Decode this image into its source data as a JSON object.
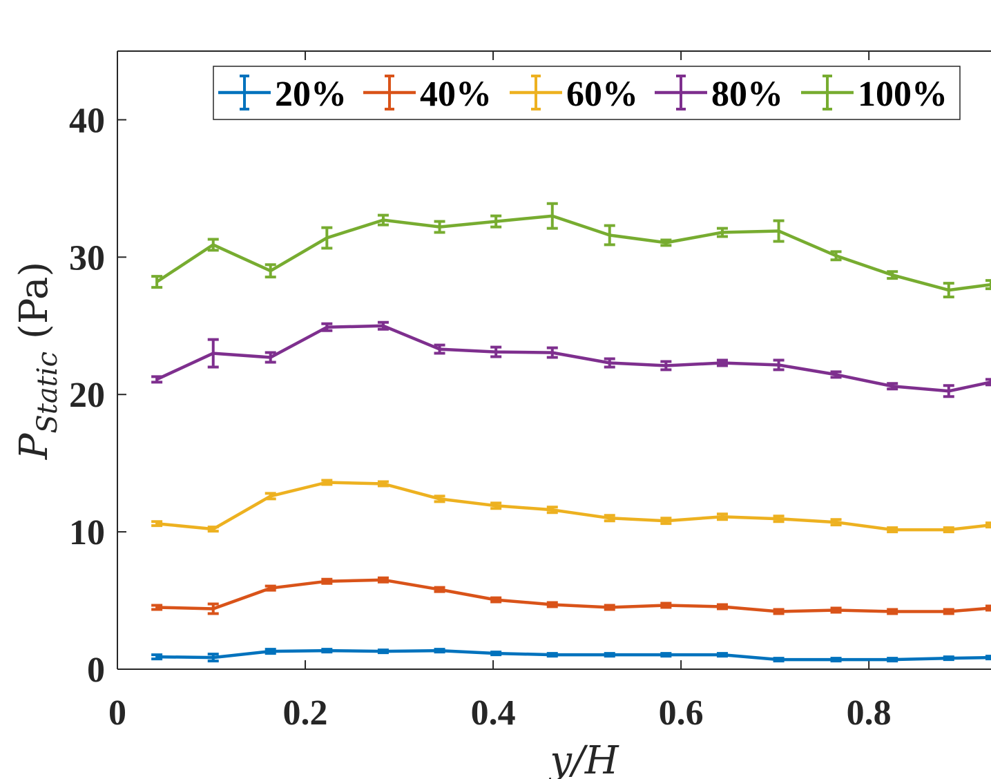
{
  "chart_data": {
    "type": "line",
    "xlabel": "y/H",
    "ylabel": {
      "main": "P",
      "subscript": "Static",
      "unit": "(Pa)"
    },
    "xlim": [
      0,
      0.93
    ],
    "ylim": [
      0,
      45
    ],
    "xticks": [
      0,
      0.2,
      0.4,
      0.6,
      0.8
    ],
    "xtick_labels": [
      "0",
      "0.2",
      "0.4",
      "0.6",
      "0.8"
    ],
    "yticks": [
      0,
      10,
      20,
      30,
      40
    ],
    "ytick_labels": [
      "0",
      "10",
      "20",
      "30",
      "40"
    ],
    "legend_position": "top",
    "x": [
      0.042,
      0.102,
      0.163,
      0.223,
      0.283,
      0.343,
      0.403,
      0.463,
      0.524,
      0.584,
      0.644,
      0.704,
      0.765,
      0.825,
      0.885,
      0.93
    ],
    "series": [
      {
        "name": "20%",
        "color": "#0072BD",
        "values": [
          0.9,
          0.85,
          1.3,
          1.35,
          1.3,
          1.35,
          1.15,
          1.05,
          1.05,
          1.05,
          1.05,
          0.7,
          0.7,
          0.7,
          0.8,
          0.85
        ],
        "errors": [
          0.15,
          0.25,
          0.15,
          0.1,
          0.1,
          0.1,
          0.1,
          0.1,
          0.1,
          0.1,
          0.1,
          0.1,
          0.1,
          0.1,
          0.1,
          0.1
        ]
      },
      {
        "name": "40%",
        "color": "#D95319",
        "values": [
          4.5,
          4.4,
          5.9,
          6.4,
          6.5,
          5.8,
          5.05,
          4.7,
          4.5,
          4.65,
          4.55,
          4.2,
          4.3,
          4.2,
          4.2,
          4.45
        ],
        "errors": [
          0.15,
          0.35,
          0.15,
          0.15,
          0.15,
          0.15,
          0.15,
          0.15,
          0.15,
          0.15,
          0.15,
          0.15,
          0.15,
          0.15,
          0.15,
          0.15
        ]
      },
      {
        "name": "60%",
        "color": "#EDB120",
        "values": [
          10.6,
          10.2,
          12.6,
          13.6,
          13.5,
          12.4,
          11.9,
          11.6,
          11.0,
          10.8,
          11.1,
          10.95,
          10.7,
          10.15,
          10.15,
          10.5
        ],
        "errors": [
          0.15,
          0.15,
          0.2,
          0.15,
          0.15,
          0.2,
          0.2,
          0.2,
          0.2,
          0.2,
          0.2,
          0.2,
          0.2,
          0.15,
          0.15,
          0.15
        ]
      },
      {
        "name": "80%",
        "color": "#7E2F8E",
        "values": [
          21.1,
          23.0,
          22.7,
          24.9,
          25.0,
          23.3,
          23.1,
          23.05,
          22.3,
          22.1,
          22.3,
          22.15,
          21.45,
          20.6,
          20.25,
          20.9
        ],
        "errors": [
          0.2,
          1.0,
          0.35,
          0.25,
          0.25,
          0.3,
          0.35,
          0.35,
          0.3,
          0.3,
          0.2,
          0.35,
          0.2,
          0.2,
          0.4,
          0.2
        ]
      },
      {
        "name": "100%",
        "color": "#77AC30",
        "values": [
          28.2,
          30.9,
          29.0,
          31.4,
          32.7,
          32.2,
          32.6,
          33.0,
          31.6,
          31.05,
          31.8,
          31.9,
          30.1,
          28.7,
          27.6,
          28.0
        ],
        "errors": [
          0.4,
          0.4,
          0.45,
          0.75,
          0.35,
          0.4,
          0.4,
          0.9,
          0.7,
          0.2,
          0.3,
          0.75,
          0.3,
          0.25,
          0.5,
          0.3
        ]
      }
    ]
  }
}
